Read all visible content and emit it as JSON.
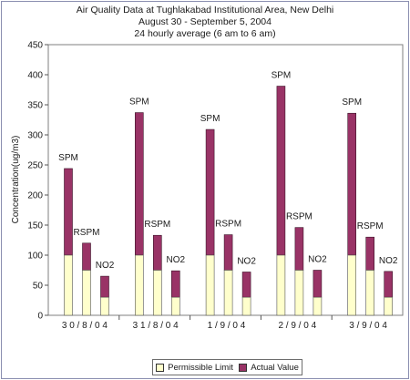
{
  "chart_data": {
    "type": "bar",
    "title": "Air Quality Data at Tughlakabad Institutional Area, New Delhi",
    "subtitle1": "August 30 - September 5, 2004",
    "subtitle2": "24 hourly average (6 am to 6 am)",
    "ylabel": "Concentration(ug/m3)",
    "xlabel": "",
    "ylim": [
      0,
      450
    ],
    "yticks": [
      0,
      50,
      100,
      150,
      200,
      250,
      300,
      350,
      400,
      450
    ],
    "grid": false,
    "legend_position": "bottom",
    "groups": [
      "3 0 / 8 / 0 4",
      "3 1 / 8 / 0 4",
      "1 / 9 / 0 4",
      "2 / 9 / 0 4",
      "3 / 9 / 0 4"
    ],
    "pollutants": [
      "SPM",
      "RSPM",
      "NO2"
    ],
    "series": [
      {
        "name": "Permissible Limit",
        "color": "#ffffcc",
        "values": [
          [
            100,
            75,
            30
          ],
          [
            100,
            75,
            30
          ],
          [
            100,
            75,
            30
          ],
          [
            100,
            75,
            30
          ],
          [
            100,
            75,
            30
          ]
        ]
      },
      {
        "name": "Actual Value",
        "color": "#993366",
        "values": [
          [
            244,
            120,
            65
          ],
          [
            337,
            133,
            74
          ],
          [
            309,
            134,
            72
          ],
          [
            381,
            146,
            75
          ],
          [
            336,
            130,
            73
          ]
        ]
      }
    ]
  }
}
